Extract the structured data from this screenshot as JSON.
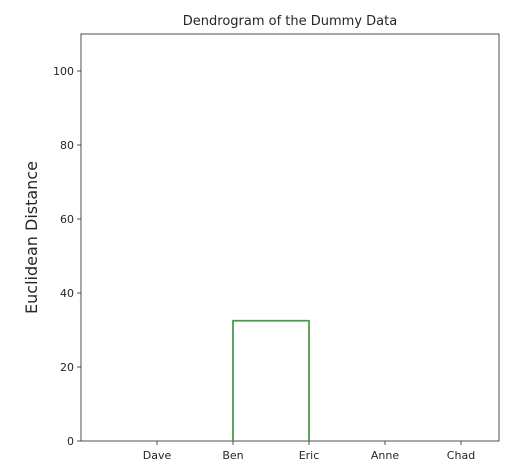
{
  "chart_data": {
    "type": "dendrogram",
    "title": "Dendrogram of the Dummy Data",
    "xlabel": "",
    "ylabel": "Euclidean Distance",
    "leaves": [
      "Dave",
      "Ben",
      "Eric",
      "Anne",
      "Chad"
    ],
    "yticks": [
      0,
      20,
      40,
      60,
      80,
      100
    ],
    "ylim": [
      0,
      110
    ],
    "links": [
      {
        "left": "Ben",
        "right": "Eric",
        "height": 32.5,
        "color": "#4c9a4c"
      }
    ],
    "grid": false,
    "legend": "none"
  }
}
